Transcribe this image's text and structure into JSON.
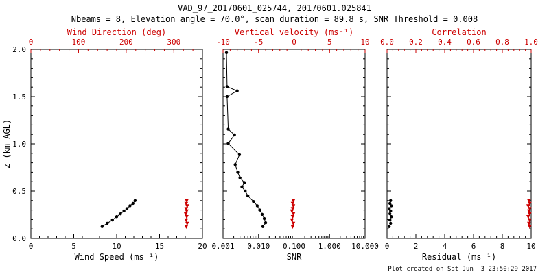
{
  "header": {
    "title": "VAD_97_20170601_025744, 20170601.025841",
    "subtitle": "Nbeams = 8, Elevation angle = 70.0°, scan duration = 89.8 s, SNR Threshold = 0.008"
  },
  "footer": {
    "created": "Plot created on Sat Jun  3 23:50:29 2017"
  },
  "colors": {
    "primary": "#000000",
    "secondary": "#cc0000",
    "background": "#ffffff"
  },
  "chart_data": [
    {
      "type": "scatter",
      "name": "wind-panel",
      "ylabel": "z (km AGL)",
      "ylim": [
        0,
        2
      ],
      "yticks": [
        0,
        0.5,
        1,
        1.5,
        2
      ],
      "ytick_labels": [
        "0.0",
        "0.5",
        "1.0",
        "1.5",
        "2.0"
      ],
      "show_ytick_labels": true,
      "bottom_axis": {
        "label": "Wind Speed (ms⁻¹)",
        "color": "#000000",
        "scale": "linear",
        "lim": [
          0,
          20
        ],
        "ticks": [
          0,
          5,
          10,
          15,
          20
        ],
        "tick_labels": [
          "0",
          "5",
          "10",
          "15",
          "20"
        ]
      },
      "top_axis": {
        "label": "Wind Direction (deg)",
        "color": "#cc0000",
        "scale": "linear",
        "lim": [
          0,
          360
        ],
        "ticks": [
          0,
          100,
          200,
          300
        ],
        "tick_labels": [
          "0",
          "100",
          "200",
          "300"
        ]
      },
      "ref_lines": [],
      "series": [
        {
          "name": "wind-speed",
          "axis": "bottom",
          "color": "#000000",
          "marker": "dot",
          "line": true,
          "points": [
            [
              8.3,
              0.125
            ],
            [
              8.9,
              0.16
            ],
            [
              9.5,
              0.195
            ],
            [
              10.0,
              0.23
            ],
            [
              10.45,
              0.26
            ],
            [
              10.85,
              0.29
            ],
            [
              11.2,
              0.315
            ],
            [
              11.55,
              0.345
            ],
            [
              11.9,
              0.37
            ],
            [
              12.15,
              0.4
            ]
          ]
        },
        {
          "name": "wind-direction",
          "axis": "top",
          "color": "#cc0000",
          "marker": "triangle",
          "line": true,
          "points": [
            [
              326,
              0.125
            ],
            [
              328,
              0.16
            ],
            [
              326,
              0.195
            ],
            [
              327,
              0.23
            ],
            [
              325,
              0.26
            ],
            [
              327,
              0.29
            ],
            [
              326,
              0.315
            ],
            [
              328,
              0.345
            ],
            [
              326,
              0.37
            ],
            [
              327,
              0.4
            ]
          ]
        }
      ]
    },
    {
      "type": "scatter",
      "name": "snr-panel",
      "ylabel": "",
      "ylim": [
        0,
        2
      ],
      "yticks": [
        0,
        0.5,
        1,
        1.5,
        2
      ],
      "ytick_labels": [
        "0.0",
        "0.5",
        "1.0",
        "1.5",
        "2.0"
      ],
      "show_ytick_labels": false,
      "bottom_axis": {
        "label": "SNR",
        "color": "#000000",
        "scale": "log",
        "lim": [
          0.001,
          10
        ],
        "ticks": [
          0.001,
          0.01,
          0.1,
          1,
          10
        ],
        "tick_labels": [
          "0.001",
          "0.010",
          "0.100",
          "1.000",
          "10.000"
        ]
      },
      "top_axis": {
        "label": "Vertical velocity (ms⁻¹)",
        "color": "#cc0000",
        "scale": "linear",
        "lim": [
          -10,
          10
        ],
        "ticks": [
          -10,
          -5,
          0,
          5,
          10
        ],
        "tick_labels": [
          "-10",
          "-5",
          "0",
          "5",
          "10"
        ]
      },
      "ref_lines": [
        {
          "axis": "top",
          "value": 0,
          "color": "#cc0000",
          "style": "dotted"
        }
      ],
      "series": [
        {
          "name": "snr",
          "axis": "bottom",
          "color": "#000000",
          "marker": "dot",
          "line": true,
          "points": [
            [
              0.0132,
              0.125
            ],
            [
              0.0158,
              0.165
            ],
            [
              0.0145,
              0.21
            ],
            [
              0.0126,
              0.255
            ],
            [
              0.0108,
              0.3
            ],
            [
              0.0092,
              0.345
            ],
            [
              0.0072,
              0.39
            ],
            [
              0.005,
              0.45
            ],
            [
              0.0042,
              0.5
            ],
            [
              0.0034,
              0.545
            ],
            [
              0.004,
              0.59
            ],
            [
              0.003,
              0.64
            ],
            [
              0.0026,
              0.7
            ],
            [
              0.0022,
              0.78
            ],
            [
              0.0029,
              0.885
            ],
            [
              0.0014,
              1.005
            ],
            [
              0.0021,
              1.095
            ],
            [
              0.0014,
              1.155
            ],
            [
              0.0013,
              1.5
            ],
            [
              0.0025,
              1.56
            ],
            [
              0.0013,
              1.605
            ],
            [
              0.00125,
              1.965
            ]
          ]
        },
        {
          "name": "vertical-velocity",
          "axis": "top",
          "color": "#cc0000",
          "marker": "triangle",
          "line": true,
          "points": [
            [
              -0.2,
              0.125
            ],
            [
              -0.1,
              0.16
            ],
            [
              -0.3,
              0.195
            ],
            [
              -0.2,
              0.23
            ],
            [
              -0.1,
              0.26
            ],
            [
              -0.3,
              0.29
            ],
            [
              -0.2,
              0.315
            ],
            [
              -0.1,
              0.345
            ],
            [
              -0.2,
              0.37
            ],
            [
              -0.1,
              0.4
            ]
          ]
        }
      ]
    },
    {
      "type": "scatter",
      "name": "residual-panel",
      "ylabel": "",
      "ylim": [
        0,
        2
      ],
      "yticks": [
        0,
        0.5,
        1,
        1.5,
        2
      ],
      "ytick_labels": [
        "0.0",
        "0.5",
        "1.0",
        "1.5",
        "2.0"
      ],
      "show_ytick_labels": false,
      "bottom_axis": {
        "label": "Residual (ms⁻¹)",
        "color": "#000000",
        "scale": "linear",
        "lim": [
          0,
          10
        ],
        "ticks": [
          0,
          2,
          4,
          6,
          8,
          10
        ],
        "tick_labels": [
          "0",
          "2",
          "4",
          "6",
          "8",
          "10"
        ]
      },
      "top_axis": {
        "label": "Correlation",
        "color": "#cc0000",
        "scale": "linear",
        "lim": [
          0,
          1
        ],
        "ticks": [
          0,
          0.2,
          0.4,
          0.6,
          0.8,
          1
        ],
        "tick_labels": [
          "0.0",
          "0.2",
          "0.4",
          "0.6",
          "0.8",
          "1.0"
        ]
      },
      "ref_lines": [],
      "series": [
        {
          "name": "residual",
          "axis": "bottom",
          "color": "#000000",
          "marker": "dot",
          "line": true,
          "points": [
            [
              0.15,
              0.125
            ],
            [
              0.25,
              0.16
            ],
            [
              0.2,
              0.195
            ],
            [
              0.3,
              0.23
            ],
            [
              0.2,
              0.26
            ],
            [
              0.25,
              0.29
            ],
            [
              0.15,
              0.315
            ],
            [
              0.3,
              0.345
            ],
            [
              0.2,
              0.37
            ],
            [
              0.25,
              0.4
            ]
          ]
        },
        {
          "name": "correlation",
          "axis": "top",
          "color": "#cc0000",
          "marker": "triangle",
          "line": true,
          "points": [
            [
              0.99,
              0.125
            ],
            [
              0.985,
              0.16
            ],
            [
              0.99,
              0.195
            ],
            [
              0.98,
              0.23
            ],
            [
              0.99,
              0.26
            ],
            [
              0.985,
              0.29
            ],
            [
              0.99,
              0.315
            ],
            [
              0.98,
              0.345
            ],
            [
              0.99,
              0.37
            ],
            [
              0.985,
              0.4
            ]
          ]
        }
      ]
    }
  ]
}
